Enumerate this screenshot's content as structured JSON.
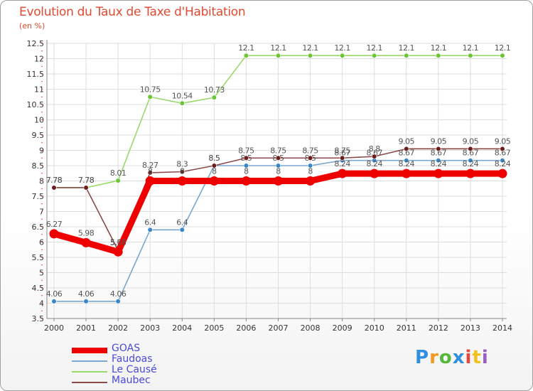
{
  "header": {
    "title": "Evolution du Taux de Taxe d'Habitation",
    "subtitle": "(en %)"
  },
  "brand": {
    "text": "Proxiti",
    "colors": [
      "#2f8fe0",
      "#f29a22",
      "#55b83a",
      "#2f8fe0",
      "#e8453c",
      "#f2c21a",
      "#9a5cc0"
    ]
  },
  "colors": {
    "grid": "#dedede",
    "axis": "#888888",
    "tick_text": "#333333",
    "value_text": "#555555",
    "title": "#e04a32",
    "legend_text": "#4a4ad8"
  },
  "chart_data": {
    "type": "line",
    "title": "Evolution du Taux de Taxe d'Habitation",
    "ylabel": "(en %)",
    "xlabel": "",
    "x": [
      "2000",
      "2001",
      "2002",
      "2003",
      "2004",
      "2005",
      "2006",
      "2007",
      "2008",
      "2009",
      "2010",
      "2011",
      "2012",
      "2013",
      "2014"
    ],
    "ylim": [
      3.5,
      12.5
    ],
    "yticks": [
      "3.5",
      "4",
      "4.5",
      "5",
      "5.5",
      "6",
      "6.5",
      "7",
      "7.5",
      "8",
      "8.5",
      "9",
      "9.5",
      "10",
      "10.5",
      "11",
      "11.5",
      "12",
      "12.5"
    ],
    "series": [
      {
        "name": "GOAS",
        "color": "#ee0000",
        "dot_color": "#ee0000",
        "weight": "bold",
        "values": [
          6.27,
          5.98,
          5.68,
          8,
          8,
          8,
          8,
          8,
          8,
          8.24,
          8.24,
          8.24,
          8.24,
          8.24,
          8.24
        ],
        "labels": [
          "6.27",
          "5.98",
          "5.68",
          "8",
          "8",
          "8",
          "8",
          "8",
          "8",
          "8.24",
          "8.24",
          "8.24",
          "8.24",
          "8.24",
          "8.24"
        ]
      },
      {
        "name": "Faudoas",
        "color": "#7aa6d0",
        "dot_color": "#3a86c8",
        "weight": "thin",
        "values": [
          4.06,
          4.06,
          4.06,
          6.4,
          6.4,
          8.5,
          8.5,
          8.5,
          8.5,
          8.67,
          8.67,
          8.67,
          8.67,
          8.67,
          8.67
        ],
        "labels": [
          "4.06",
          "4.06",
          "4.06",
          "6.4",
          "6.4",
          "8.5",
          "8.5",
          "8.5",
          "8.5",
          "8.67",
          "8.67",
          "8.67",
          "8.67",
          "8.67",
          "8.67"
        ]
      },
      {
        "name": "Le Causé",
        "color": "#9ad86a",
        "dot_color": "#6cc534",
        "weight": "thin",
        "values": [
          7.78,
          7.78,
          8.01,
          10.75,
          10.54,
          10.73,
          12.1,
          12.1,
          12.1,
          12.1,
          12.1,
          12.1,
          12.1,
          12.1,
          12.1
        ],
        "labels": [
          "7.78",
          "7.78",
          "8.01",
          "10.75",
          "10.54",
          "10.73",
          "12.1",
          "12.1",
          "12.1",
          "12.1",
          "12.1",
          "12.1",
          "12.1",
          "12.1",
          "12.1"
        ]
      },
      {
        "name": "Maubec",
        "color": "#8a4a4a",
        "dot_color": "#6e1d1d",
        "weight": "thin",
        "values": [
          7.78,
          7.78,
          5.73,
          8.27,
          8.3,
          8.5,
          8.75,
          8.75,
          8.75,
          8.75,
          8.8,
          9.05,
          9.05,
          9.05,
          9.05
        ],
        "labels": [
          "7.78",
          "7.78",
          "5.73",
          "8.27",
          "8.3",
          "8.5",
          "8.75",
          "8.75",
          "8.75",
          "8.75",
          "8.8",
          "9.05",
          "9.05",
          "9.05",
          "9.05"
        ]
      }
    ],
    "legend": {
      "position": "bottom-left",
      "entries": [
        "GOAS",
        "Faudoas",
        "Le Causé",
        "Maubec"
      ]
    }
  }
}
